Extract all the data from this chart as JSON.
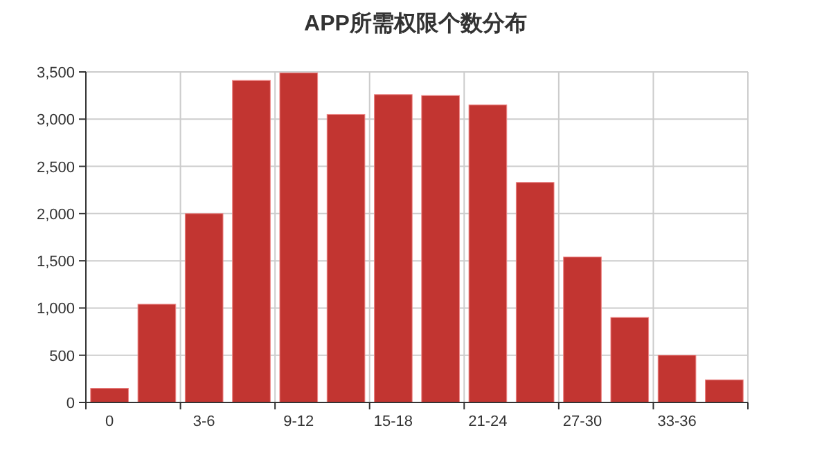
{
  "chart_data": {
    "type": "bar",
    "title": "APP所需权限个数分布",
    "categories": [
      "0",
      null,
      "3-6",
      null,
      "9-12",
      null,
      "15-18",
      null,
      "21-24",
      null,
      "27-30",
      null,
      "33-36",
      null
    ],
    "values": [
      150,
      1040,
      2000,
      3410,
      3490,
      3050,
      3260,
      3250,
      3150,
      2330,
      1540,
      900,
      500,
      240
    ],
    "color": "#c23531",
    "ylim": [
      0,
      3500
    ],
    "yticks": [
      0,
      {
        "value": 500,
        "label": "500"
      },
      {
        "value": 1000,
        "label": "1,000"
      },
      {
        "value": 1500,
        "label": "1,500"
      },
      {
        "value": 2000,
        "label": "2,000"
      },
      {
        "value": 2500,
        "label": "2,500"
      },
      {
        "value": 3000,
        "label": "3,000"
      },
      {
        "value": 3500,
        "label": "3,500"
      }
    ],
    "grid": true
  }
}
